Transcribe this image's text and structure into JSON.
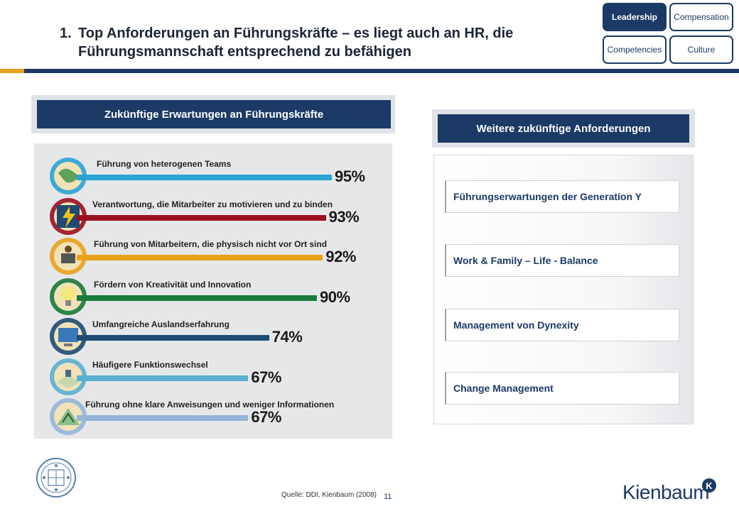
{
  "title": {
    "number": "1.",
    "line1": "Top Anforderungen an Führungskräfte – es liegt auch an HR, die",
    "line2": "Führungsmannschaft entsprechend zu befähigen"
  },
  "nav": {
    "tabs": [
      {
        "label": "Leadership",
        "active": true
      },
      {
        "label": "Compensation",
        "active": false
      },
      {
        "label": "Competencies",
        "active": false
      },
      {
        "label": "Culture",
        "active": false
      }
    ]
  },
  "left_section": {
    "header": "Zukünftige Erwartungen an Führungskräfte"
  },
  "right_section": {
    "header": "Weitere zukünftige Anforderungen",
    "items": [
      "Führungserwartungen der Generation Y",
      "Work & Family – Life - Balance",
      "Management von Dynexity",
      "Change Management"
    ]
  },
  "chart_data": {
    "type": "bar",
    "orientation": "horizontal",
    "unit": "%",
    "xlim": [
      0,
      100
    ],
    "categories": [
      "Führung von heterogenen Teams",
      "Verantwortung, die Mitarbeiter zu motivieren und zu binden",
      "Führung von Mitarbeitern, die physisch nicht vor Ort sind",
      "Fördern von Kreativität und Innovation",
      "Umfangreiche Auslandserfahrung",
      "Häufigere Funktionswechsel",
      "Führung ohne klare Anweisungen und weniger Informationen"
    ],
    "values": [
      95,
      93,
      92,
      90,
      74,
      67,
      67
    ],
    "value_labels": [
      "95%",
      "93%",
      "92%",
      "90%",
      "74%",
      "67%",
      "67%"
    ],
    "bar_colors": [
      "#2aa3d6",
      "#9a1020",
      "#e8a21a",
      "#1a7a3a",
      "#1f4a72",
      "#5aaed0",
      "#96b4d8"
    ],
    "icons": [
      "globe-icon",
      "lightning-icon",
      "remote-worker-icon",
      "lightbulb-icon",
      "computer-map-icon",
      "desk-switch-icon",
      "maze-icon"
    ]
  },
  "footer": {
    "source": "Quelle: DDI, Kienbaum (2008)",
    "page_number": "11",
    "logo_text": "Kienbaum",
    "logo_mark": "K"
  }
}
